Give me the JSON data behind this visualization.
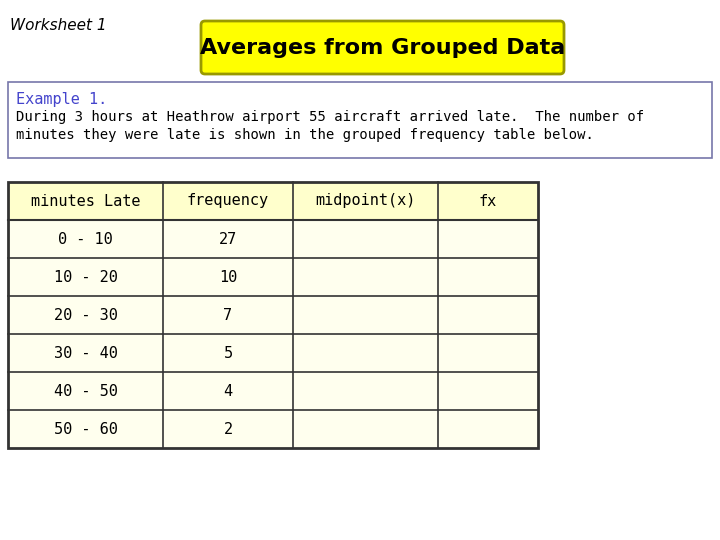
{
  "worksheet_title": "Worksheet 1",
  "main_title": "Averages from Grouped Data",
  "title_bg_color": "#FFFF00",
  "title_border_color": "#999900",
  "example_title": "Example 1.",
  "example_title_color": "#4444CC",
  "example_body_line1": "During 3 hours at Heathrow airport 55 aircraft arrived late.  The number of",
  "example_body_line2": "minutes they were late is shown in the grouped frequency table below.",
  "example_box_border": "#7777AA",
  "table_headers": [
    "minutes Late",
    "frequency",
    "midpoint(x)",
    "fx"
  ],
  "table_rows": [
    [
      "0 - 10",
      "27",
      "",
      ""
    ],
    [
      "10 - 20",
      "10",
      "",
      ""
    ],
    [
      "20 - 30",
      "7",
      "",
      ""
    ],
    [
      "30 - 40",
      "5",
      "",
      ""
    ],
    [
      "40 - 50",
      "4",
      "",
      ""
    ],
    [
      "50 - 60",
      "2",
      "",
      ""
    ]
  ],
  "table_header_bg": "#FFFFCC",
  "table_cell_bg": "#FFFFEE",
  "table_border_color": "#333333",
  "bg_color": "#FFFFFF",
  "text_color": "#000000",
  "font_size_title": 16,
  "font_size_worksheet": 11,
  "font_size_example_title": 11,
  "font_size_example_body": 10,
  "font_size_table_header": 11,
  "font_size_table_data": 11
}
